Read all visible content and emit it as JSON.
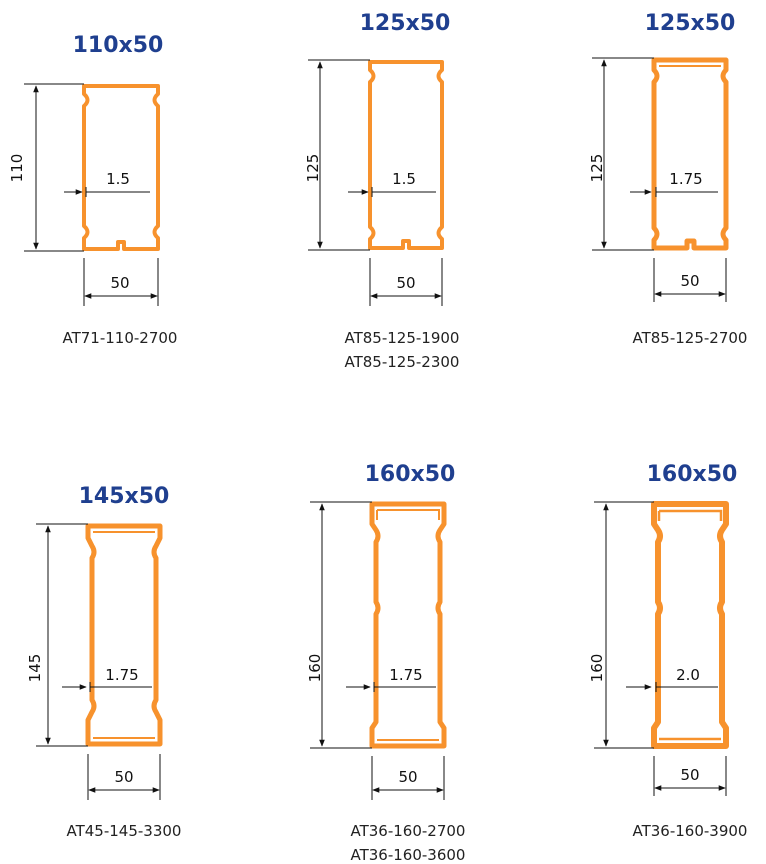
{
  "colors": {
    "title": "#1f3f8f",
    "profile": "#f7922d",
    "profile_inner": "#ffffff",
    "text": "#111111"
  },
  "profiles": [
    {
      "title": "110x50",
      "height_label": "110",
      "width_label": "50",
      "thickness_label": "1.5",
      "codes": [
        "AT71-110-2700"
      ]
    },
    {
      "title": "125x50",
      "height_label": "125",
      "width_label": "50",
      "thickness_label": "1.5",
      "codes": [
        "AT85-125-1900",
        "AT85-125-2300"
      ]
    },
    {
      "title": "125x50",
      "height_label": "125",
      "width_label": "50",
      "thickness_label": "1.75",
      "codes": [
        "AT85-125-2700"
      ]
    },
    {
      "title": "145x50",
      "height_label": "145",
      "width_label": "50",
      "thickness_label": "1.75",
      "codes": [
        "AT45-145-3300"
      ]
    },
    {
      "title": "160x50",
      "height_label": "160",
      "width_label": "50",
      "thickness_label": "1.75",
      "codes": [
        "AT36-160-2700",
        "AT36-160-3600"
      ]
    },
    {
      "title": "160x50",
      "height_label": "160",
      "width_label": "50",
      "thickness_label": "2.0",
      "codes": [
        "AT36-160-3900"
      ]
    }
  ]
}
